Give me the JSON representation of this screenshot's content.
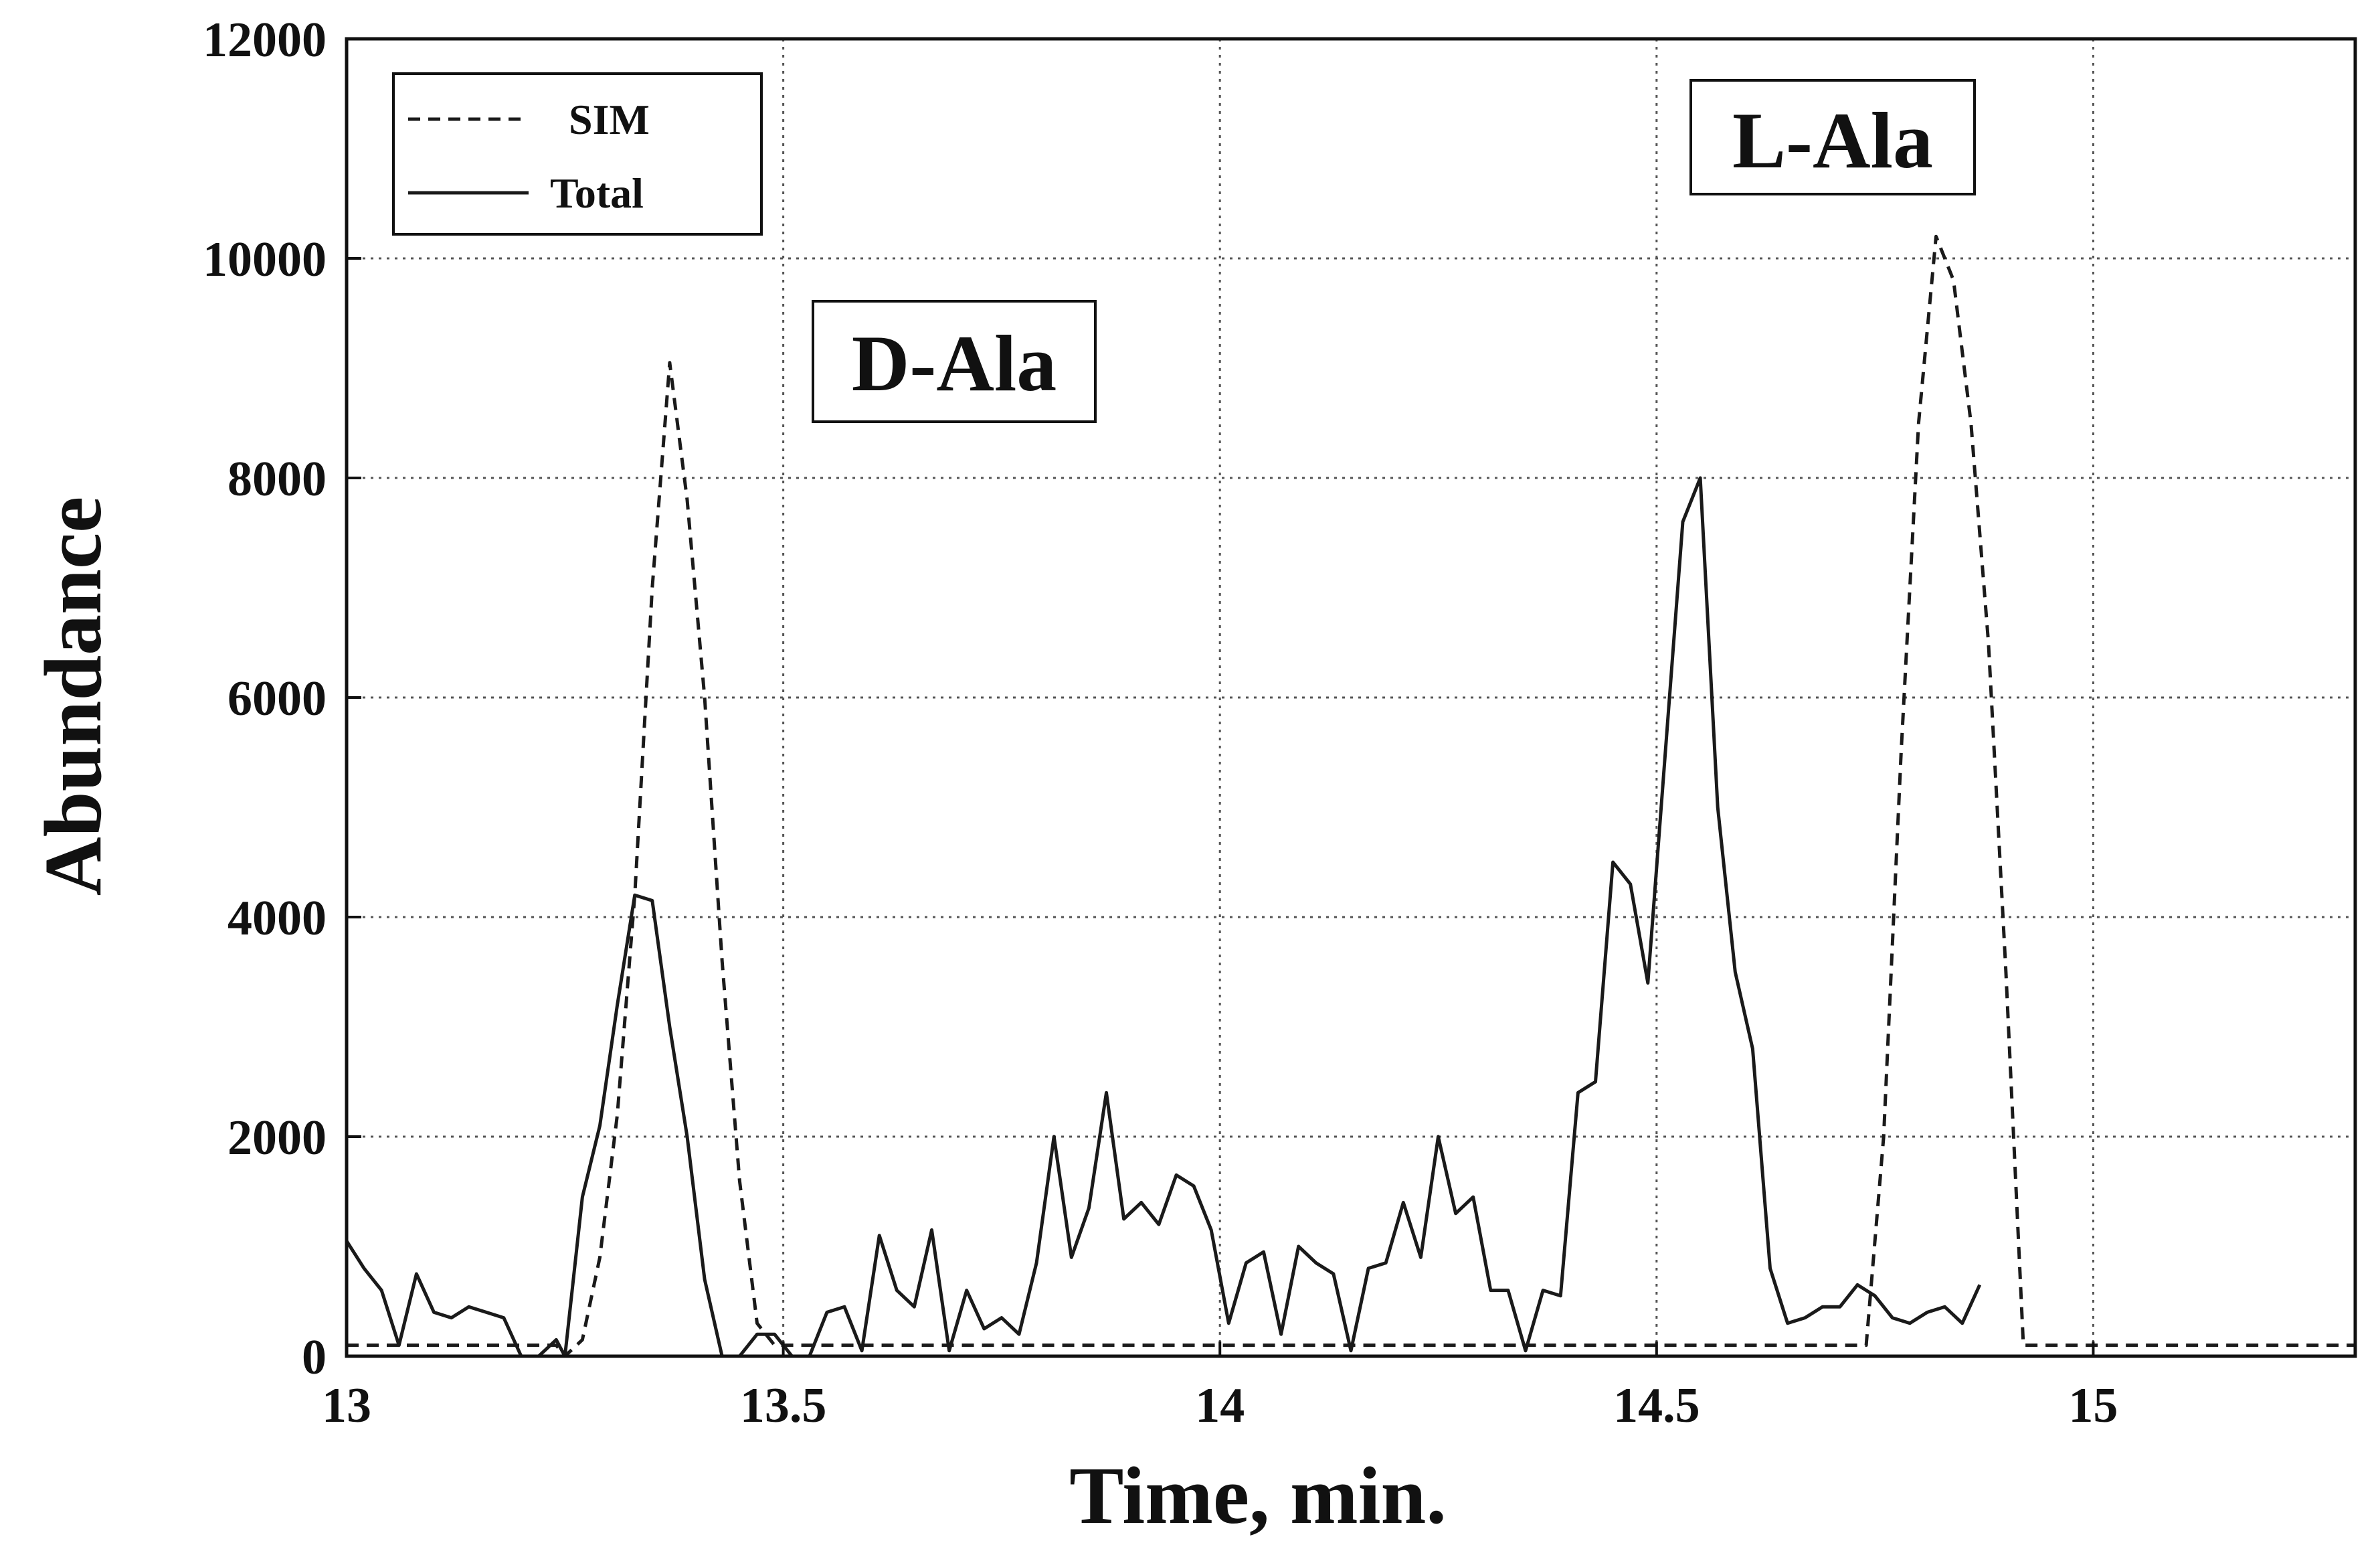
{
  "chart_data": {
    "type": "line",
    "title": "",
    "xlabel": "Time, min.",
    "ylabel": "Abundance",
    "xlim": [
      13,
      15.3
    ],
    "ylim": [
      0,
      12000
    ],
    "xticks": [
      13,
      13.5,
      14,
      14.5,
      15
    ],
    "xtick_labels": [
      "13",
      "13.5",
      "14",
      "14.5",
      "15"
    ],
    "yticks": [
      0,
      2000,
      4000,
      6000,
      8000,
      10000,
      12000
    ],
    "ytick_labels": [
      "0",
      "2000",
      "4000",
      "6000",
      "8000",
      "10000",
      "12000"
    ],
    "grid": true,
    "legend_position": "top-left",
    "colors": {
      "line": "#1a1a1a",
      "grid": "#555555",
      "background": "#ffffff"
    },
    "series": [
      {
        "name": "SIM",
        "style": "dashed",
        "points": [
          [
            13.0,
            100
          ],
          [
            13.2,
            100
          ],
          [
            13.24,
            100
          ],
          [
            13.25,
            0
          ],
          [
            13.27,
            150
          ],
          [
            13.29,
            900
          ],
          [
            13.31,
            2200
          ],
          [
            13.33,
            4200
          ],
          [
            13.35,
            7000
          ],
          [
            13.37,
            9050
          ],
          [
            13.39,
            7800
          ],
          [
            13.41,
            6000
          ],
          [
            13.43,
            3600
          ],
          [
            13.45,
            1600
          ],
          [
            13.47,
            300
          ],
          [
            13.49,
            100
          ],
          [
            13.6,
            100
          ],
          [
            14.0,
            100
          ],
          [
            14.5,
            100
          ],
          [
            14.64,
            100
          ],
          [
            14.74,
            100
          ],
          [
            14.76,
            2000
          ],
          [
            14.78,
            5500
          ],
          [
            14.8,
            8500
          ],
          [
            14.82,
            10200
          ],
          [
            14.84,
            9800
          ],
          [
            14.86,
            8500
          ],
          [
            14.88,
            6500
          ],
          [
            14.9,
            3500
          ],
          [
            14.92,
            100
          ],
          [
            15.0,
            100
          ],
          [
            15.3,
            100
          ]
        ]
      },
      {
        "name": "Total",
        "style": "solid",
        "points": [
          [
            13.0,
            1050
          ],
          [
            13.02,
            800
          ],
          [
            13.04,
            600
          ],
          [
            13.06,
            100
          ],
          [
            13.08,
            750
          ],
          [
            13.1,
            400
          ],
          [
            13.12,
            350
          ],
          [
            13.14,
            450
          ],
          [
            13.16,
            400
          ],
          [
            13.18,
            350
          ],
          [
            13.2,
            0
          ],
          [
            13.22,
            0
          ],
          [
            13.24,
            150
          ],
          [
            13.25,
            0
          ],
          [
            13.27,
            1450
          ],
          [
            13.29,
            2100
          ],
          [
            13.31,
            3200
          ],
          [
            13.33,
            4200
          ],
          [
            13.35,
            4150
          ],
          [
            13.37,
            3000
          ],
          [
            13.39,
            2000
          ],
          [
            13.41,
            700
          ],
          [
            13.43,
            0
          ],
          [
            13.45,
            0
          ],
          [
            13.47,
            200
          ],
          [
            13.49,
            200
          ],
          [
            13.51,
            0
          ],
          [
            13.53,
            0
          ],
          [
            13.55,
            400
          ],
          [
            13.57,
            450
          ],
          [
            13.59,
            50
          ],
          [
            13.61,
            1100
          ],
          [
            13.63,
            600
          ],
          [
            13.65,
            450
          ],
          [
            13.67,
            1150
          ],
          [
            13.69,
            50
          ],
          [
            13.71,
            600
          ],
          [
            13.73,
            250
          ],
          [
            13.75,
            350
          ],
          [
            13.77,
            200
          ],
          [
            13.79,
            850
          ],
          [
            13.81,
            2000
          ],
          [
            13.83,
            900
          ],
          [
            13.85,
            1350
          ],
          [
            13.87,
            2400
          ],
          [
            13.89,
            1250
          ],
          [
            13.91,
            1400
          ],
          [
            13.93,
            1200
          ],
          [
            13.95,
            1650
          ],
          [
            13.97,
            1550
          ],
          [
            13.99,
            1150
          ],
          [
            14.01,
            300
          ],
          [
            14.03,
            850
          ],
          [
            14.05,
            950
          ],
          [
            14.07,
            200
          ],
          [
            14.09,
            1000
          ],
          [
            14.11,
            850
          ],
          [
            14.13,
            750
          ],
          [
            14.15,
            50
          ],
          [
            14.17,
            800
          ],
          [
            14.19,
            850
          ],
          [
            14.21,
            1400
          ],
          [
            14.23,
            900
          ],
          [
            14.25,
            2000
          ],
          [
            14.27,
            1300
          ],
          [
            14.29,
            1450
          ],
          [
            14.31,
            600
          ],
          [
            14.33,
            600
          ],
          [
            14.35,
            50
          ],
          [
            14.37,
            600
          ],
          [
            14.39,
            550
          ],
          [
            14.41,
            2400
          ],
          [
            14.43,
            2500
          ],
          [
            14.45,
            4500
          ],
          [
            14.47,
            4300
          ],
          [
            14.49,
            3400
          ],
          [
            14.51,
            5500
          ],
          [
            14.53,
            7600
          ],
          [
            14.55,
            8000
          ],
          [
            14.57,
            5000
          ],
          [
            14.59,
            3500
          ],
          [
            14.61,
            2800
          ],
          [
            14.63,
            800
          ],
          [
            14.65,
            300
          ],
          [
            14.67,
            350
          ],
          [
            14.69,
            450
          ],
          [
            14.71,
            450
          ],
          [
            14.73,
            650
          ],
          [
            14.75,
            550
          ],
          [
            14.77,
            350
          ],
          [
            14.79,
            300
          ],
          [
            14.81,
            400
          ],
          [
            14.83,
            450
          ],
          [
            14.85,
            300
          ],
          [
            14.87,
            650
          ]
        ]
      }
    ],
    "annotations": [
      {
        "text": "D-Ala",
        "x": 13.55,
        "y": 9100
      },
      {
        "text": "L-Ala",
        "x": 14.85,
        "y": 11000
      }
    ]
  }
}
